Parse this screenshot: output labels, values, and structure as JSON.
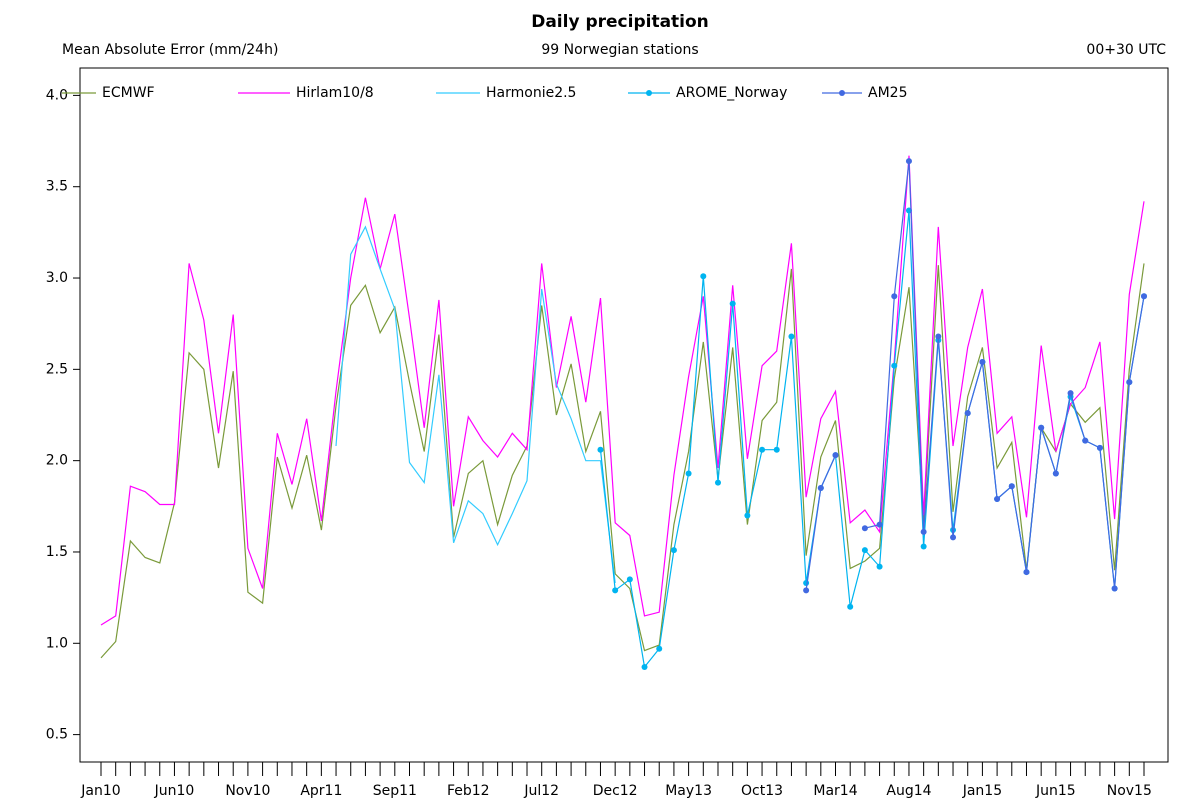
{
  "chart_data": {
    "type": "line",
    "title": "Daily precipitation",
    "y_label": "Mean Absolute Error (mm/24h)",
    "subtitle": "99 Norwegian stations",
    "annotation": "00+30 UTC",
    "categories": [
      "Jan10",
      null,
      null,
      null,
      null,
      "Jun10",
      null,
      null,
      null,
      null,
      "Nov10",
      null,
      null,
      null,
      null,
      "Apr11",
      null,
      null,
      null,
      null,
      "Sep11",
      null,
      null,
      null,
      null,
      "Feb12",
      null,
      null,
      null,
      null,
      "Jul12",
      null,
      null,
      null,
      null,
      "Dec12",
      null,
      null,
      null,
      null,
      "May13",
      null,
      null,
      null,
      null,
      "Oct13",
      null,
      null,
      null,
      null,
      "Mar14",
      null,
      null,
      null,
      null,
      "Aug14",
      null,
      null,
      null,
      null,
      "Jan15",
      null,
      null,
      null,
      null,
      "Jun15",
      null,
      null,
      null,
      null,
      "Nov15",
      null
    ],
    "ylim": [
      0.35,
      4.15
    ],
    "yticks": [
      0.5,
      {
        "value": 1,
        "label": "1.0"
      },
      1.5,
      {
        "value": 2,
        "label": "2.0"
      },
      2.5,
      {
        "value": 3,
        "label": "3.0"
      },
      3.5,
      {
        "value": 4,
        "label": "4.0"
      }
    ],
    "legend": "top-left",
    "series": [
      {
        "name": "ECMWF",
        "color": "#7a9a3a",
        "markers": false,
        "values": [
          0.92,
          1.01,
          1.56,
          1.47,
          1.44,
          1.77,
          2.59,
          2.5,
          1.96,
          2.49,
          1.28,
          1.22,
          2.02,
          1.74,
          2.03,
          1.62,
          2.3,
          2.85,
          2.96,
          2.7,
          2.84,
          2.43,
          2.05,
          2.69,
          1.58,
          1.93,
          2.0,
          1.65,
          1.92,
          2.08,
          2.85,
          2.25,
          2.53,
          2.05,
          2.27,
          1.38,
          1.3,
          0.96,
          0.99,
          1.65,
          2.05,
          2.65,
          1.9,
          2.62,
          1.65,
          2.22,
          2.32,
          3.05,
          1.48,
          2.02,
          2.22,
          1.41,
          1.45,
          1.52,
          2.45,
          2.95,
          1.65,
          3.07,
          1.72,
          2.35,
          2.62,
          1.96,
          2.1,
          1.4,
          2.18,
          2.05,
          2.31,
          2.21,
          2.29,
          1.4,
          2.5,
          3.08
        ]
      },
      {
        "name": "Hirlam10/8",
        "color": "#ff00ff",
        "markers": false,
        "values": [
          1.1,
          1.15,
          1.86,
          1.83,
          1.76,
          1.76,
          3.08,
          2.77,
          2.15,
          2.8,
          1.52,
          1.3,
          2.15,
          1.87,
          2.23,
          1.67,
          2.38,
          3.0,
          3.44,
          3.05,
          3.35,
          2.78,
          2.18,
          2.88,
          1.75,
          2.24,
          2.11,
          2.02,
          2.15,
          2.06,
          3.08,
          2.4,
          2.79,
          2.32,
          2.89,
          1.66,
          1.59,
          1.15,
          1.17,
          1.92,
          2.46,
          2.9,
          1.96,
          2.96,
          2.01,
          2.52,
          2.6,
          3.19,
          1.8,
          2.23,
          2.38,
          1.66,
          1.73,
          1.61,
          2.55,
          3.67,
          1.7,
          3.28,
          2.08,
          2.62,
          2.94,
          2.15,
          2.24,
          1.69,
          2.63,
          2.05,
          2.31,
          2.4,
          2.65,
          1.68,
          2.91,
          3.42
        ]
      },
      {
        "name": "Harmonie2.5",
        "color": "#33ccff",
        "markers": false,
        "values": [
          null,
          null,
          null,
          null,
          null,
          null,
          null,
          null,
          null,
          null,
          null,
          null,
          null,
          null,
          null,
          null,
          2.08,
          3.13,
          3.28,
          3.05,
          2.83,
          1.99,
          1.88,
          2.47,
          1.55,
          1.78,
          1.71,
          1.54,
          1.71,
          1.89,
          2.94,
          2.42,
          2.23,
          2.0,
          2.0,
          1.33,
          null,
          null,
          null,
          null,
          null,
          null,
          null,
          null,
          null,
          null,
          null,
          null,
          null,
          null,
          null,
          null,
          null,
          null,
          null,
          null,
          null,
          null,
          null,
          null,
          null,
          null,
          null,
          null,
          null,
          null,
          null,
          null,
          null,
          null,
          null,
          null
        ]
      },
      {
        "name": "AROME_Norway",
        "color": "#00b4f0",
        "markers": true,
        "values": [
          null,
          null,
          null,
          null,
          null,
          null,
          null,
          null,
          null,
          null,
          null,
          null,
          null,
          null,
          null,
          null,
          null,
          null,
          null,
          null,
          null,
          null,
          null,
          null,
          null,
          null,
          null,
          null,
          null,
          null,
          null,
          null,
          null,
          null,
          2.06,
          1.29,
          1.35,
          0.87,
          0.97,
          1.51,
          1.93,
          3.01,
          1.88,
          2.86,
          1.7,
          2.06,
          2.06,
          2.68,
          1.33,
          1.85,
          2.03,
          1.2,
          1.51,
          1.42,
          2.52,
          3.37,
          1.53,
          2.66,
          1.62,
          2.26,
          2.54,
          1.79,
          1.86,
          1.39,
          2.18,
          1.93,
          2.35,
          2.11,
          2.07,
          1.3,
          2.43,
          2.9
        ]
      },
      {
        "name": "AM25",
        "color": "#4169e1",
        "markers": true,
        "values": [
          null,
          null,
          null,
          null,
          null,
          null,
          null,
          null,
          null,
          null,
          null,
          null,
          null,
          null,
          null,
          null,
          null,
          null,
          null,
          null,
          null,
          null,
          null,
          null,
          null,
          null,
          null,
          null,
          null,
          null,
          null,
          null,
          null,
          null,
          null,
          null,
          null,
          null,
          null,
          null,
          null,
          null,
          null,
          null,
          null,
          null,
          null,
          null,
          1.29,
          1.85,
          2.03,
          null,
          1.63,
          1.65,
          2.9,
          3.64,
          1.61,
          2.68,
          1.58,
          2.26,
          2.54,
          1.79,
          1.86,
          1.39,
          2.18,
          1.93,
          2.37,
          2.11,
          2.07,
          1.3,
          2.43,
          2.9
        ]
      }
    ]
  }
}
